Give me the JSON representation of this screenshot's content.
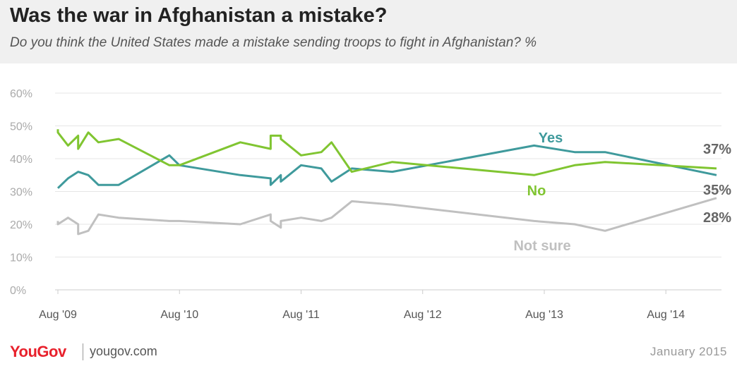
{
  "header": {
    "title": "Was the war in Afghanistan a mistake?",
    "subtitle": "Do you think the United States made a mistake sending troops to fight in Afghanistan? %"
  },
  "footer": {
    "brand": "YouGov",
    "site": "yougov.com",
    "date": "January 2015"
  },
  "colors": {
    "yes": "#3f9a9c",
    "no": "#80c531",
    "not_sure": "#c0c0c0",
    "grid": "#e6e6e6"
  },
  "chart_data": {
    "type": "line",
    "title": "Was the war in Afghanistan a mistake?",
    "subtitle": "Do you think the United States made a mistake sending troops to fight in Afghanistan? %",
    "xlabel": "",
    "ylabel": "",
    "ylim": [
      0,
      60
    ],
    "y_ticks": [
      "0%",
      "10%",
      "20%",
      "30%",
      "40%",
      "50%",
      "60%"
    ],
    "x_ticks": [
      "Aug '09",
      "Aug '10",
      "Aug '11",
      "Aug '12",
      "Aug '13",
      "Aug '14"
    ],
    "grid": true,
    "x": [
      "2009-08",
      "2009-08",
      "2009-09",
      "2009-10",
      "2009-10",
      "2009-11",
      "2009-12",
      "2010-02",
      "2010-07",
      "2010-08",
      "2011-02",
      "2011-05",
      "2011-05",
      "2011-06",
      "2011-06",
      "2011-08",
      "2011-10",
      "2011-11",
      "2012-01",
      "2012-05",
      "2013-07",
      "2013-11",
      "2014-02",
      "2015-01"
    ],
    "series": [
      {
        "name": "Yes",
        "label": "Yes",
        "end_label": "35%",
        "values": [
          31,
          31,
          34,
          36,
          36,
          35,
          32,
          32,
          41,
          38,
          35,
          34,
          32,
          35,
          33,
          38,
          37,
          33,
          37,
          36,
          44,
          42,
          42,
          35
        ]
      },
      {
        "name": "No",
        "label": "No",
        "end_label": "37%",
        "values": [
          49,
          48,
          44,
          47,
          43,
          48,
          45,
          46,
          38,
          38,
          45,
          43,
          47,
          47,
          46,
          41,
          42,
          45,
          36,
          39,
          35,
          38,
          39,
          37
        ]
      },
      {
        "name": "Not sure",
        "label": "Not sure",
        "end_label": "28%",
        "values": [
          21,
          20,
          22,
          20,
          17,
          18,
          23,
          22,
          21,
          21,
          20,
          23,
          21,
          19,
          21,
          22,
          21,
          22,
          27,
          26,
          21,
          20,
          18,
          28
        ]
      }
    ]
  }
}
